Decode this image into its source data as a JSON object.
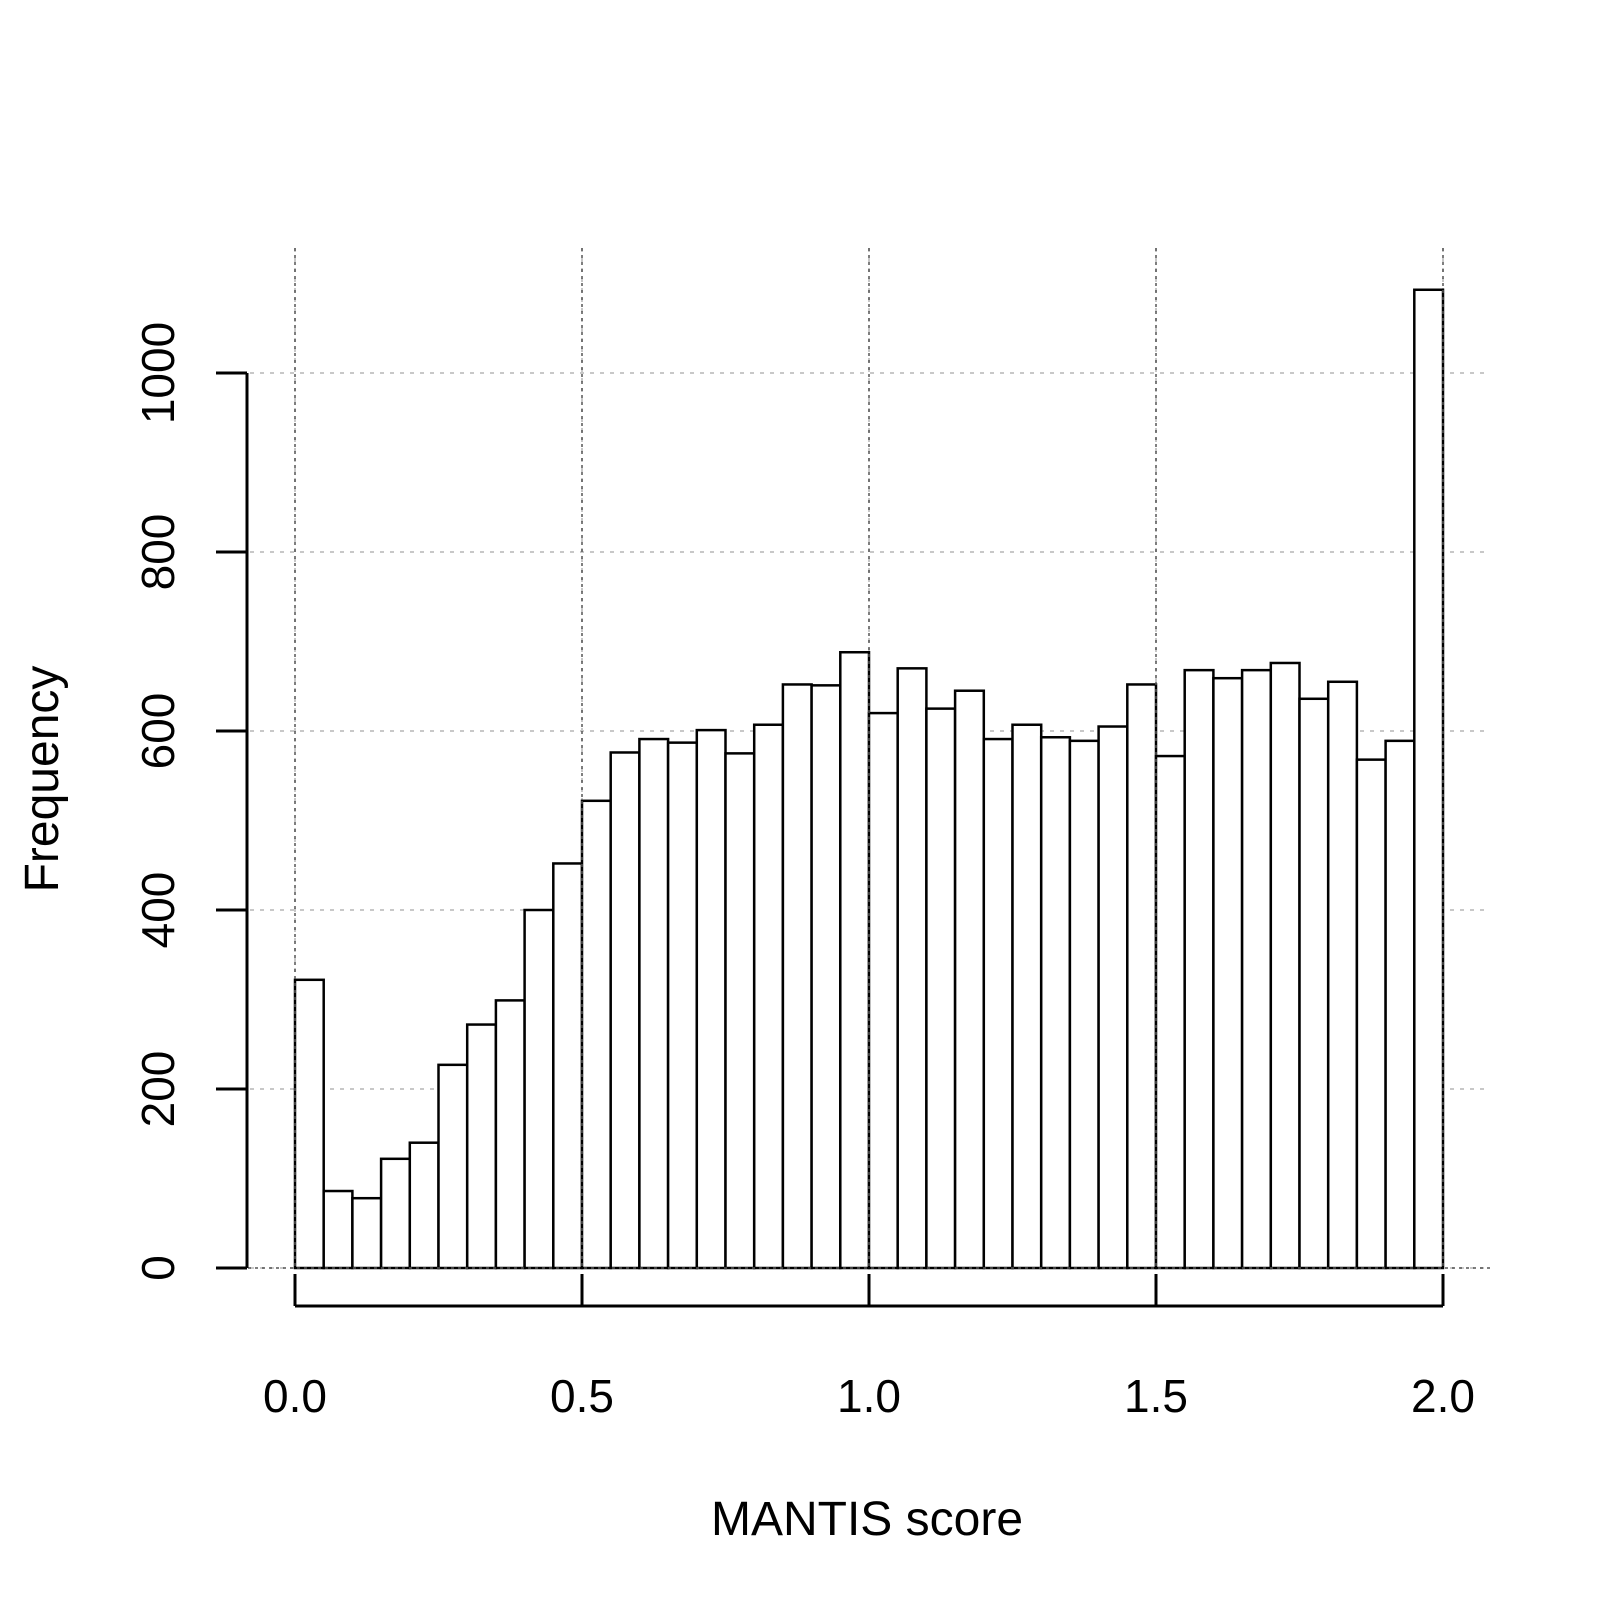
{
  "chart_data": {
    "type": "bar",
    "title": "",
    "xlabel": "MANTIS score",
    "ylabel": "Frequency",
    "xlim": [
      0,
      2
    ],
    "ylim": [
      0,
      1100
    ],
    "bin_width": 0.05,
    "bin_starts": [
      0.0,
      0.05,
      0.1,
      0.15,
      0.2,
      0.25,
      0.3,
      0.35,
      0.4,
      0.45,
      0.5,
      0.55,
      0.6,
      0.65,
      0.7,
      0.75,
      0.8,
      0.85,
      0.9,
      0.95,
      1.0,
      1.05,
      1.1,
      1.15,
      1.2,
      1.25,
      1.3,
      1.35,
      1.4,
      1.45,
      1.5,
      1.55,
      1.6,
      1.65,
      1.7,
      1.75,
      1.8,
      1.85,
      1.9,
      1.95
    ],
    "values": [
      322,
      86,
      78,
      122,
      140,
      227,
      272,
      299,
      400,
      452,
      522,
      576,
      591,
      587,
      601,
      575,
      607,
      652,
      651,
      688,
      620,
      670,
      625,
      645,
      591,
      607,
      593,
      589,
      605,
      652,
      572,
      668,
      659,
      668,
      676,
      636,
      655,
      568,
      589,
      1093
    ],
    "x_ticks": [
      0.0,
      0.5,
      1.0,
      1.5,
      2.0
    ],
    "x_tick_labels": [
      "0.0",
      "0.5",
      "1.0",
      "1.5",
      "2.0"
    ],
    "y_ticks": [
      0,
      200,
      400,
      600,
      800,
      1000
    ],
    "y_tick_labels": [
      "0",
      "200",
      "400",
      "600",
      "800",
      "1000"
    ],
    "grid": true,
    "legend": "none",
    "colors": {
      "bar_fill": "#ffffff",
      "bar_stroke": "#000000",
      "grid": "#c8c8c8"
    }
  }
}
